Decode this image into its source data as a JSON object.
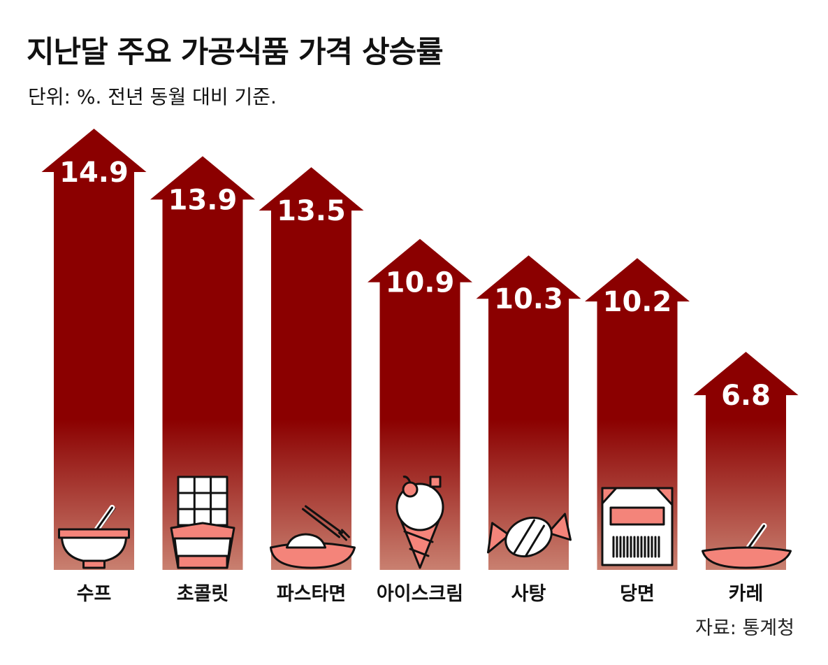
{
  "title": "지난달 주요 가공식품 가격 상승률",
  "subtitle": "단위: %. 전년 동월 대비 기준.",
  "source": "자료: 통계청",
  "colors": {
    "arrow_top": "#8b0000",
    "arrow_bottom": "#c98070",
    "icon_fill": "#f4847a",
    "icon_stroke": "#111111",
    "label_text": "#ffffff"
  },
  "chart_data": {
    "type": "bar",
    "categories": [
      "수프",
      "초콜릿",
      "파스타면",
      "아이스크림",
      "사탕",
      "당면",
      "카레"
    ],
    "values": [
      14.9,
      13.9,
      13.5,
      10.9,
      10.3,
      10.2,
      6.8
    ],
    "value_labels": [
      "14.9",
      "13.9",
      "13.5",
      "10.9",
      "10.3",
      "10.2",
      "6.8"
    ],
    "icons": [
      "soup-bowl-icon",
      "chocolate-bar-icon",
      "pasta-plate-icon",
      "ice-cream-icon",
      "candy-icon",
      "glass-noodle-pack-icon",
      "curry-plate-icon"
    ],
    "grid": false,
    "legend": "none"
  }
}
